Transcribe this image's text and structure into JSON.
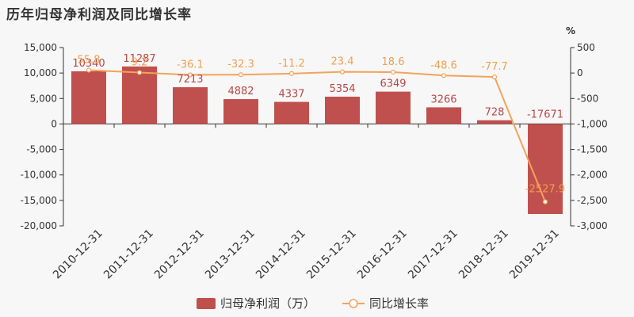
{
  "chart_data": {
    "type": "bar",
    "title": "历年归母净利润及同比增长率",
    "categories": [
      "2010-12-31",
      "2011-12-31",
      "2012-12-31",
      "2013-12-31",
      "2014-12-31",
      "2015-12-31",
      "2016-12-31",
      "2017-12-31",
      "2018-12-31",
      "2019-12-31"
    ],
    "series": [
      {
        "name": "归母净利润（万）",
        "kind": "bar",
        "axis": "left",
        "color": "#c0504d",
        "values": [
          10340,
          11287,
          7213,
          4882,
          4337,
          5354,
          6349,
          3266,
          728,
          -17671
        ]
      },
      {
        "name": "同比增长率",
        "kind": "line",
        "axis": "right",
        "color": "#f3a35a",
        "values": [
          55.8,
          9.2,
          -36.1,
          -32.3,
          -11.2,
          23.4,
          18.6,
          -48.6,
          -77.7,
          -2527.9
        ]
      }
    ],
    "ylim_left": [
      -20000,
      15000
    ],
    "yticks_left": [
      15000,
      10000,
      5000,
      0,
      -5000,
      -10000,
      -15000,
      -20000
    ],
    "ytick_labels_left": [
      "15,000",
      "10,000",
      "5,000",
      "0",
      "-5,000",
      "-10,000",
      "-15,000",
      "-20,000"
    ],
    "ylim_right": [
      -3000,
      500
    ],
    "yticks_right": [
      500,
      0,
      -500,
      -1000,
      -1500,
      -2000,
      -2500,
      -3000
    ],
    "ytick_labels_right": [
      "500",
      "0",
      "-500",
      "-1,000",
      "-1,500",
      "-2,000",
      "-2,500",
      "-3,000"
    ],
    "ylabel_right": "%",
    "grid": false,
    "legend_position": "bottom-center"
  }
}
